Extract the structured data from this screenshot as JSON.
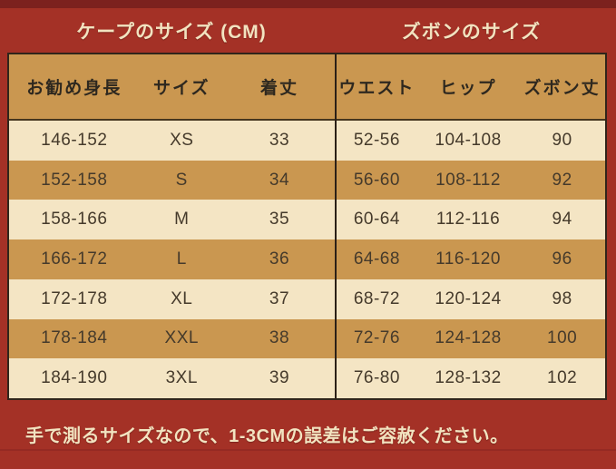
{
  "chart_data": [
    {
      "type": "table",
      "title": "ケープのサイズ (CM)",
      "columns": [
        "お勧め身長",
        "サイズ",
        "着丈"
      ],
      "rows": [
        [
          "146-152",
          "XS",
          "33"
        ],
        [
          "152-158",
          "S",
          "34"
        ],
        [
          "158-166",
          "M",
          "35"
        ],
        [
          "166-172",
          "L",
          "36"
        ],
        [
          "172-178",
          "XL",
          "37"
        ],
        [
          "178-184",
          "XXL",
          "38"
        ],
        [
          "184-190",
          "3XL",
          "39"
        ]
      ]
    },
    {
      "type": "table",
      "title": "ズボンのサイズ",
      "columns": [
        "ウエスト",
        "ヒップ",
        "ズボン丈"
      ],
      "rows": [
        [
          "52-56",
          "104-108",
          "90"
        ],
        [
          "56-60",
          "108-112",
          "92"
        ],
        [
          "60-64",
          "112-116",
          "94"
        ],
        [
          "64-68",
          "116-120",
          "96"
        ],
        [
          "68-72",
          "120-124",
          "98"
        ],
        [
          "72-76",
          "124-128",
          "100"
        ],
        [
          "76-80",
          "128-132",
          "102"
        ]
      ]
    }
  ],
  "footer": {
    "note": "手で測るサイズなので、1-3CMの誤差はご容赦ください。"
  },
  "colors": {
    "background_red": "#a43126",
    "background_red_dark": "#7c211e",
    "row_tan": "#ca9750",
    "row_cream": "#f4e5c4",
    "border_dark": "#30251b",
    "text_dark": "#453a2b",
    "text_cream": "#f2e3c0"
  }
}
